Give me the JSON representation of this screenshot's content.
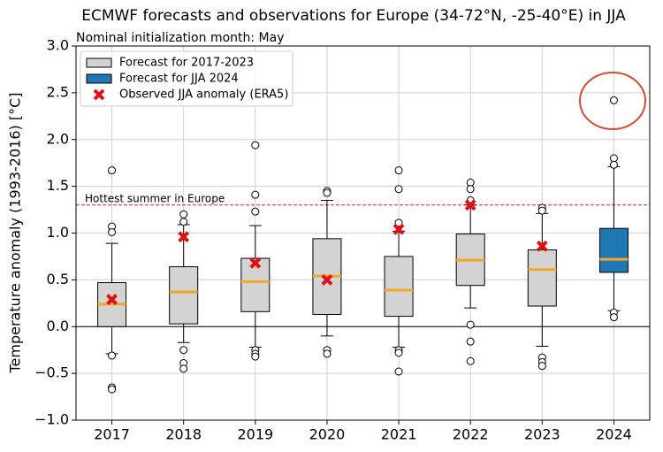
{
  "chart_data": {
    "type": "box",
    "title": "ECMWF forecasts and observations for Europe (34-72°N, -25-40°E) in JJA",
    "subtitle": "Nominal initialization month: May",
    "y_label": "Temperature anomaly (1993-2016) [°C]",
    "categories": [
      "2017",
      "2018",
      "2019",
      "2020",
      "2021",
      "2022",
      "2023",
      "2024"
    ],
    "ylim": [
      -1.0,
      3.0
    ],
    "yticks": [
      {
        "value": -1.0,
        "label": "−1.0"
      },
      {
        "value": -0.5,
        "label": "−0.5"
      },
      {
        "value": 0.0,
        "label": "0.0"
      },
      {
        "value": 0.5,
        "label": "0.5"
      },
      {
        "value": 1.0,
        "label": "1.0"
      },
      {
        "value": 1.5,
        "label": "1.5"
      },
      {
        "value": 2.0,
        "label": "2.0"
      },
      {
        "value": 2.5,
        "label": "2.5"
      },
      {
        "value": 3.0,
        "label": "3.0"
      }
    ],
    "grid": true,
    "legend": "upper left",
    "median_color": "#f5a623",
    "series": [
      {
        "name": "Forecast for 2017-2023",
        "color": "#d3d3d3",
        "boxes": [
          {
            "whislo": -0.29,
            "q1": 0.0,
            "med": 0.24,
            "q3": 0.47,
            "whishi": 0.89,
            "fliers": [
              1.67,
              1.07,
              1.01,
              -0.31,
              -0.65,
              -0.67
            ]
          },
          {
            "whislo": -0.17,
            "q1": 0.03,
            "med": 0.37,
            "q3": 0.64,
            "whishi": 1.09,
            "fliers": [
              1.2,
              1.12,
              -0.25,
              -0.39,
              -0.45
            ]
          },
          {
            "whislo": -0.22,
            "q1": 0.16,
            "med": 0.48,
            "q3": 0.73,
            "whishi": 1.08,
            "fliers": [
              1.94,
              1.41,
              1.23,
              -0.25,
              -0.29,
              -0.32
            ]
          },
          {
            "whislo": -0.1,
            "q1": 0.13,
            "med": 0.54,
            "q3": 0.94,
            "whishi": 1.35,
            "fliers": [
              1.45,
              1.43,
              -0.25,
              -0.29
            ]
          },
          {
            "whislo": -0.22,
            "q1": 0.11,
            "med": 0.39,
            "q3": 0.75,
            "whishi": 1.02,
            "fliers": [
              1.67,
              1.47,
              1.11,
              -0.25,
              -0.28,
              -0.48
            ]
          },
          {
            "whislo": 0.2,
            "q1": 0.44,
            "med": 0.71,
            "q3": 0.99,
            "whishi": 1.3,
            "fliers": [
              1.54,
              1.47,
              1.35,
              0.02,
              -0.16,
              -0.37
            ]
          },
          {
            "whislo": -0.21,
            "q1": 0.22,
            "med": 0.61,
            "q3": 0.82,
            "whishi": 1.21,
            "fliers": [
              1.27,
              1.24,
              -0.33,
              -0.38,
              -0.42
            ]
          },
          null
        ]
      },
      {
        "name": "Forecast for JJA 2024",
        "color": "#1f77b4",
        "boxes": [
          null,
          null,
          null,
          null,
          null,
          null,
          null,
          {
            "whislo": 0.17,
            "q1": 0.58,
            "med": 0.72,
            "q3": 1.05,
            "whishi": 1.71,
            "fliers": [
              2.42,
              1.8,
              1.73,
              0.15,
              0.1
            ]
          }
        ]
      },
      {
        "name": "Observed JJA anomaly (ERA5)",
        "color": "#e01010",
        "values": [
          0.29,
          0.96,
          0.68,
          0.5,
          1.04,
          1.3,
          0.86,
          null
        ]
      }
    ],
    "reference_line": {
      "value": 1.3,
      "label": "Hottest summer in Europe",
      "color": "#d62728"
    }
  }
}
